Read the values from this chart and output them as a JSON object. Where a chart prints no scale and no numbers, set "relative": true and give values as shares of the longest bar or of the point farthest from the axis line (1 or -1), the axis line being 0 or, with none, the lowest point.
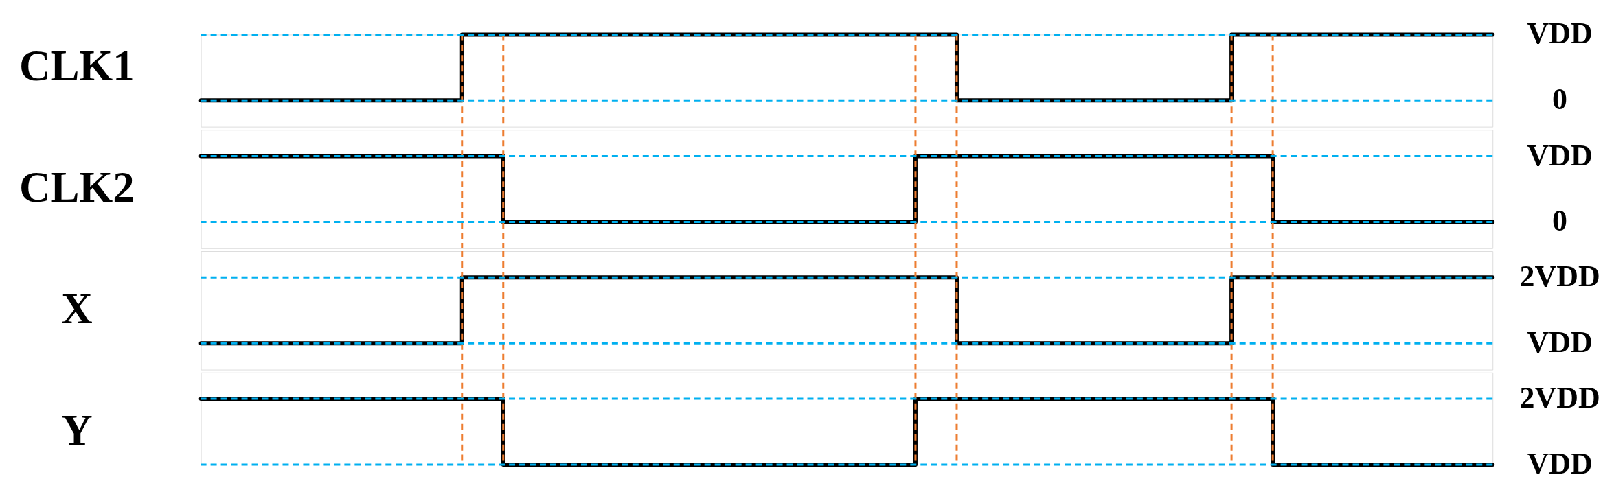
{
  "chart_data": [
    {
      "type": "step",
      "ylabel": "CLK1",
      "relative": true,
      "grid": "x",
      "categories": [
        null,
        null,
        null,
        null,
        null,
        null,
        null,
        null,
        null,
        null,
        null,
        null,
        null,
        null,
        null,
        null,
        null,
        null,
        null,
        null,
        null,
        null,
        null,
        null,
        null,
        null,
        null,
        null,
        null,
        null,
        null,
        null,
        null,
        null,
        null,
        null,
        null,
        null,
        null,
        null,
        null,
        null,
        null,
        null,
        null,
        null,
        null,
        null,
        null,
        null,
        null,
        null,
        null,
        null,
        null,
        null,
        null,
        null,
        null,
        null,
        null,
        null,
        null,
        null,
        null,
        null,
        null,
        null,
        null,
        null,
        null,
        null,
        null,
        null,
        null,
        null,
        null,
        null,
        null,
        null,
        null,
        null,
        null,
        null,
        null,
        null,
        null,
        null,
        null,
        null,
        null,
        null,
        null,
        null,
        null
      ],
      "series": [
        {
          "color": "#000000",
          "values": [
            0,
            0,
            0,
            0,
            0,
            0,
            0,
            0,
            0,
            0,
            0,
            0,
            0,
            0,
            0,
            0,
            0,
            0,
            0,
            1,
            1,
            1,
            1,
            1,
            1,
            1,
            1,
            1,
            1,
            1,
            1,
            1,
            1,
            1,
            1,
            1,
            1,
            1,
            1,
            1,
            1,
            1,
            1,
            1,
            1,
            1,
            1,
            1,
            1,
            1,
            1,
            1,
            1,
            1,
            1,
            0,
            0,
            0,
            0,
            0,
            0,
            0,
            0,
            0,
            0,
            0,
            0,
            0,
            0,
            0,
            0,
            0,
            0,
            0,
            0,
            1,
            1,
            1,
            1,
            1,
            1,
            1,
            1,
            1,
            1,
            1,
            1,
            1,
            1,
            1,
            1,
            1,
            1,
            1,
            1
          ]
        }
      ],
      "ref_lines": [
        {
          "axis": "y",
          "value": 1,
          "label": "VDD",
          "color": "#00b0f0",
          "line_style": "dotted"
        },
        {
          "axis": "y",
          "value": 0,
          "label": "0",
          "color": "#00b0f0",
          "line_style": "dotted"
        }
      ]
    },
    {
      "type": "step",
      "ylabel": "CLK2",
      "relative": true,
      "grid": "x",
      "categories": [
        null,
        null,
        null,
        null,
        null,
        null,
        null,
        null,
        null,
        null,
        null,
        null,
        null,
        null,
        null,
        null,
        null,
        null,
        null,
        null,
        null,
        null,
        null,
        null,
        null,
        null,
        null,
        null,
        null,
        null,
        null,
        null,
        null,
        null,
        null,
        null,
        null,
        null,
        null,
        null,
        null,
        null,
        null,
        null,
        null,
        null,
        null,
        null,
        null,
        null,
        null,
        null,
        null,
        null,
        null,
        null,
        null,
        null,
        null,
        null,
        null,
        null,
        null,
        null,
        null,
        null,
        null,
        null,
        null,
        null,
        null,
        null,
        null,
        null,
        null,
        null,
        null,
        null,
        null,
        null,
        null,
        null,
        null,
        null,
        null,
        null,
        null,
        null,
        null,
        null,
        null,
        null,
        null,
        null,
        null
      ],
      "series": [
        {
          "color": "#000000",
          "values": [
            1,
            1,
            1,
            1,
            1,
            1,
            1,
            1,
            1,
            1,
            1,
            1,
            1,
            1,
            1,
            1,
            1,
            1,
            1,
            1,
            1,
            1,
            0,
            0,
            0,
            0,
            0,
            0,
            0,
            0,
            0,
            0,
            0,
            0,
            0,
            0,
            0,
            0,
            0,
            0,
            0,
            0,
            0,
            0,
            0,
            0,
            0,
            0,
            0,
            0,
            0,
            0,
            1,
            1,
            1,
            1,
            1,
            1,
            1,
            1,
            1,
            1,
            1,
            1,
            1,
            1,
            1,
            1,
            1,
            1,
            1,
            1,
            1,
            1,
            1,
            1,
            1,
            1,
            0,
            0,
            0,
            0,
            0,
            0,
            0,
            0,
            0,
            0,
            0,
            0,
            0,
            0,
            0,
            0,
            0
          ]
        }
      ],
      "ref_lines": [
        {
          "axis": "y",
          "value": 1,
          "label": "VDD",
          "color": "#00b0f0",
          "line_style": "dotted"
        },
        {
          "axis": "y",
          "value": 0,
          "label": "0",
          "color": "#00b0f0",
          "line_style": "dotted"
        }
      ]
    },
    {
      "type": "step",
      "ylabel": "X",
      "relative": true,
      "grid": "x",
      "categories": [
        null,
        null,
        null,
        null,
        null,
        null,
        null,
        null,
        null,
        null,
        null,
        null,
        null,
        null,
        null,
        null,
        null,
        null,
        null,
        null,
        null,
        null,
        null,
        null,
        null,
        null,
        null,
        null,
        null,
        null,
        null,
        null,
        null,
        null,
        null,
        null,
        null,
        null,
        null,
        null,
        null,
        null,
        null,
        null,
        null,
        null,
        null,
        null,
        null,
        null,
        null,
        null,
        null,
        null,
        null,
        null,
        null,
        null,
        null,
        null,
        null,
        null,
        null,
        null,
        null,
        null,
        null,
        null,
        null,
        null,
        null,
        null,
        null,
        null,
        null,
        null,
        null,
        null,
        null,
        null,
        null,
        null,
        null,
        null,
        null,
        null,
        null,
        null,
        null,
        null,
        null,
        null,
        null,
        null,
        null
      ],
      "series": [
        {
          "color": "#000000",
          "values": [
            0,
            0,
            0,
            0,
            0,
            0,
            0,
            0,
            0,
            0,
            0,
            0,
            0,
            0,
            0,
            0,
            0,
            0,
            0,
            1,
            1,
            1,
            1,
            1,
            1,
            1,
            1,
            1,
            1,
            1,
            1,
            1,
            1,
            1,
            1,
            1,
            1,
            1,
            1,
            1,
            1,
            1,
            1,
            1,
            1,
            1,
            1,
            1,
            1,
            1,
            1,
            1,
            1,
            1,
            1,
            0,
            0,
            0,
            0,
            0,
            0,
            0,
            0,
            0,
            0,
            0,
            0,
            0,
            0,
            0,
            0,
            0,
            0,
            0,
            0,
            1,
            1,
            1,
            1,
            1,
            1,
            1,
            1,
            1,
            1,
            1,
            1,
            1,
            1,
            1,
            1,
            1,
            1,
            1,
            1
          ]
        }
      ],
      "ref_lines": [
        {
          "axis": "y",
          "value": 1,
          "label": "2VDD",
          "color": "#00b0f0",
          "line_style": "dotted"
        },
        {
          "axis": "y",
          "value": 0,
          "label": "VDD",
          "color": "#00b0f0",
          "line_style": "dotted"
        }
      ]
    },
    {
      "type": "step",
      "ylabel": "Y",
      "relative": true,
      "grid": "x",
      "categories": [
        null,
        null,
        null,
        null,
        null,
        null,
        null,
        null,
        null,
        null,
        null,
        null,
        null,
        null,
        null,
        null,
        null,
        null,
        null,
        null,
        null,
        null,
        null,
        null,
        null,
        null,
        null,
        null,
        null,
        null,
        null,
        null,
        null,
        null,
        null,
        null,
        null,
        null,
        null,
        null,
        null,
        null,
        null,
        null,
        null,
        null,
        null,
        null,
        null,
        null,
        null,
        null,
        null,
        null,
        null,
        null,
        null,
        null,
        null,
        null,
        null,
        null,
        null,
        null,
        null,
        null,
        null,
        null,
        null,
        null,
        null,
        null,
        null,
        null,
        null,
        null,
        null,
        null,
        null,
        null,
        null,
        null,
        null,
        null,
        null,
        null,
        null,
        null,
        null,
        null,
        null,
        null,
        null,
        null,
        null
      ],
      "series": [
        {
          "color": "#000000",
          "values": [
            1,
            1,
            1,
            1,
            1,
            1,
            1,
            1,
            1,
            1,
            1,
            1,
            1,
            1,
            1,
            1,
            1,
            1,
            1,
            1,
            1,
            1,
            0,
            0,
            0,
            0,
            0,
            0,
            0,
            0,
            0,
            0,
            0,
            0,
            0,
            0,
            0,
            0,
            0,
            0,
            0,
            0,
            0,
            0,
            0,
            0,
            0,
            0,
            0,
            0,
            0,
            0,
            1,
            1,
            1,
            1,
            1,
            1,
            1,
            1,
            1,
            1,
            1,
            1,
            1,
            1,
            1,
            1,
            1,
            1,
            1,
            1,
            1,
            1,
            1,
            1,
            1,
            1,
            0,
            0,
            0,
            0,
            0,
            0,
            0,
            0,
            0,
            0,
            0,
            0,
            0,
            0,
            0,
            0,
            0
          ]
        }
      ],
      "ref_lines": [
        {
          "axis": "y",
          "value": 1,
          "label": "2VDD",
          "color": "#00b0f0",
          "line_style": "dotted"
        },
        {
          "axis": "y",
          "value": 0,
          "label": "VDD",
          "color": "#00b0f0",
          "line_style": "dotted"
        }
      ]
    }
  ]
}
